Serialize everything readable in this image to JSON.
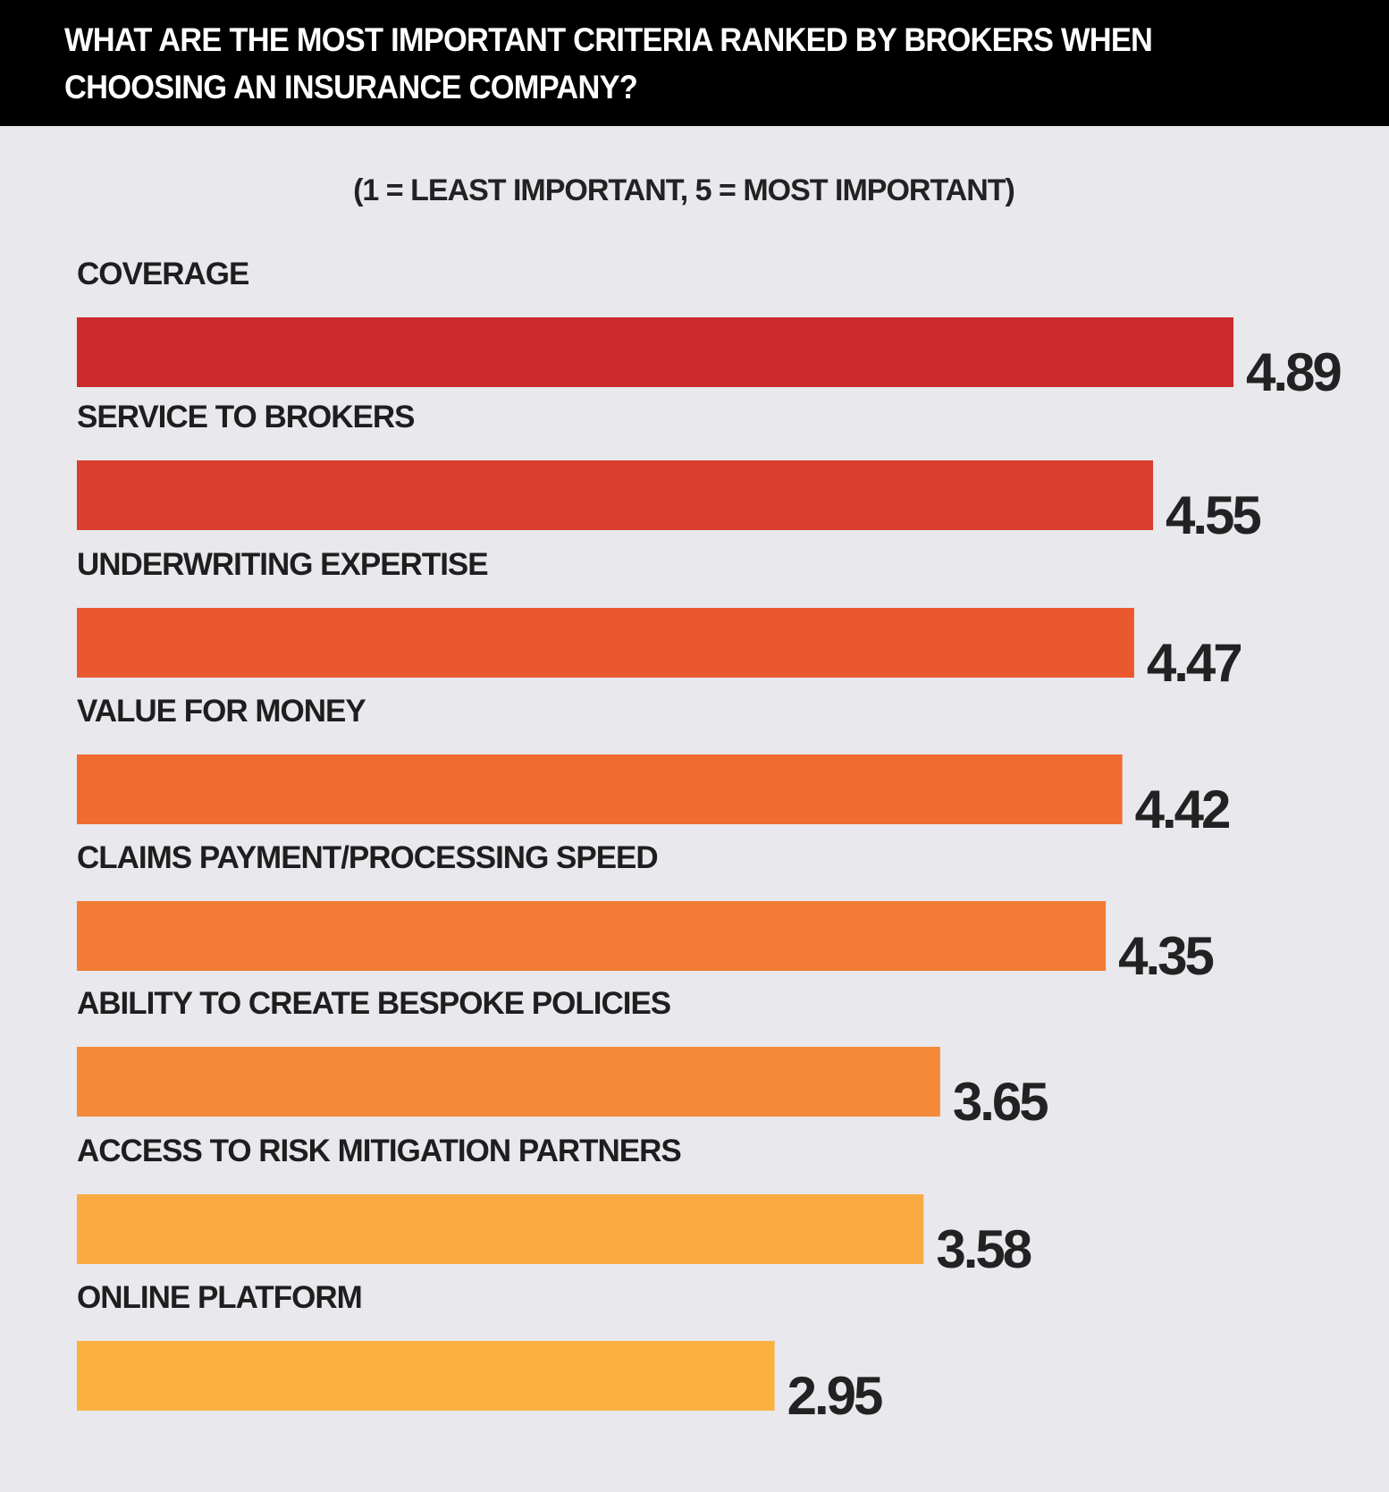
{
  "header": {
    "title": "WHAT ARE THE MOST IMPORTANT CRITERIA RANKED BY BROKERS WHEN CHOOSING AN INSURANCE COMPANY?"
  },
  "chart_data": {
    "type": "bar",
    "orientation": "horizontal",
    "title": "WHAT ARE THE MOST IMPORTANT CRITERIA RANKED BY BROKERS WHEN CHOOSING AN INSURANCE COMPANY?",
    "subtitle": "(1 = LEAST IMPORTANT, 5 = MOST IMPORTANT)",
    "xlim": [
      0,
      5
    ],
    "grid": false,
    "categories": [
      "COVERAGE",
      "SERVICE TO BROKERS",
      "UNDERWRITING EXPERTISE",
      "VALUE FOR MONEY",
      "CLAIMS PAYMENT/PROCESSING SPEED",
      "ABILITY TO CREATE BESPOKE POLICIES",
      "ACCESS TO RISK MITIGATION PARTNERS",
      "ONLINE PLATFORM"
    ],
    "values": [
      4.89,
      4.55,
      4.47,
      4.42,
      4.35,
      3.65,
      3.58,
      2.95
    ],
    "value_labels": [
      "4.89",
      "4.55",
      "4.47",
      "4.42",
      "4.35",
      "3.65",
      "3.58",
      "2.95"
    ],
    "colors": [
      "#cc2b2d",
      "#d93e2f",
      "#ea582f",
      "#f06b30",
      "#f27c36",
      "#f48a39",
      "#f9ab42",
      "#fbb040"
    ]
  }
}
